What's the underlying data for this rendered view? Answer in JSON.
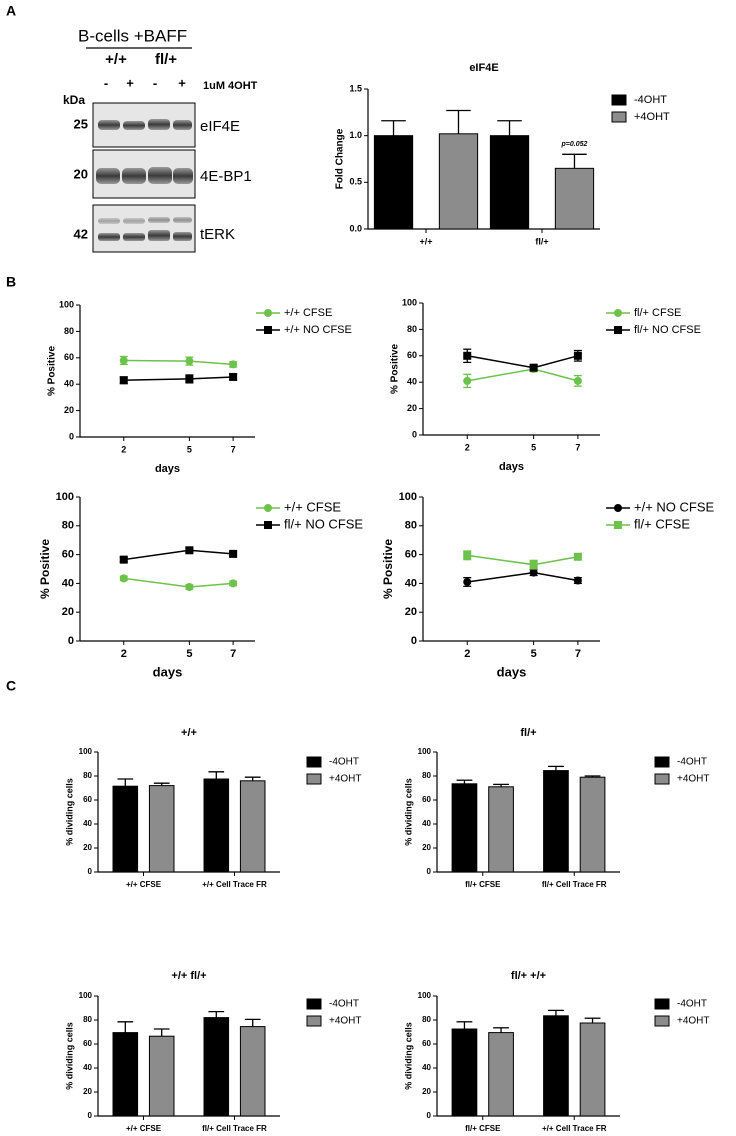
{
  "panel_labels": [
    "A",
    "B",
    "C"
  ],
  "blot": {
    "title": "B-cells +BAFF",
    "genotypes": [
      "+/+",
      "fl/+"
    ],
    "treatment_signs": [
      "-",
      "+",
      "-",
      "+"
    ],
    "treatment_label": "1uM 4OHT",
    "kda_label": "kDa",
    "markers": [
      "25",
      "20",
      "42"
    ],
    "proteins": [
      "eIF4E",
      "4E-BP1",
      "tERK"
    ]
  },
  "chart_data": [
    {
      "type": "bar",
      "title": "eIF4E",
      "y_label": "Fold Change",
      "categories": [
        "+/+",
        "fl/+"
      ],
      "series": [
        {
          "name": "-4OHT",
          "color": "#000000",
          "values": [
            1.0,
            1.0
          ],
          "errors": [
            0.16,
            0.16
          ]
        },
        {
          "name": "+4OHT",
          "color": "#8c8c8c",
          "values": [
            1.02,
            0.65
          ],
          "errors": [
            0.25,
            0.15
          ]
        }
      ],
      "annotation": "p=0.052",
      "ylim": [
        0,
        1.5
      ],
      "yticks": [
        {
          "value": 0,
          "label": "0.0"
        },
        {
          "value": 0.5,
          "label": "0.5"
        },
        {
          "value": 1,
          "label": "1.0"
        },
        {
          "value": 1.5,
          "label": "1.5"
        }
      ]
    },
    {
      "type": "line",
      "x_label": "days",
      "y_label": "% Positive",
      "x": [
        2,
        5,
        7
      ],
      "xlim": [
        0,
        8
      ],
      "xticks": [
        2,
        5,
        7
      ],
      "ylim": [
        0,
        100
      ],
      "yticks": [
        0,
        20,
        40,
        60,
        80,
        100
      ],
      "series": [
        {
          "name": "+/+ CFSE",
          "color": "#6cc24a",
          "marker": "circle",
          "values": [
            58,
            57.5,
            55
          ],
          "errors": [
            3,
            3,
            2
          ]
        },
        {
          "name": "+/+ NO CFSE",
          "color": "#000000",
          "marker": "square",
          "values": [
            43,
            44,
            45.5
          ],
          "errors": [
            2.5,
            3,
            2
          ]
        }
      ]
    },
    {
      "type": "line",
      "x_label": "days",
      "y_label": "% Positive",
      "x": [
        2,
        5,
        7
      ],
      "xlim": [
        0,
        8
      ],
      "xticks": [
        2,
        5,
        7
      ],
      "ylim": [
        0,
        100
      ],
      "yticks": [
        0,
        20,
        40,
        60,
        80,
        100
      ],
      "series": [
        {
          "name": "fl/+ CFSE",
          "color": "#6cc24a",
          "marker": "circle",
          "values": [
            41,
            50,
            41
          ],
          "errors": [
            5,
            2,
            4
          ]
        },
        {
          "name": "fl/+ NO CFSE",
          "color": "#000000",
          "marker": "square",
          "values": [
            60,
            51,
            60
          ],
          "errors": [
            5,
            2,
            4
          ]
        }
      ]
    },
    {
      "type": "line",
      "x_label": "days",
      "y_label": "% Positive",
      "x": [
        2,
        5,
        7
      ],
      "xlim": [
        0,
        8
      ],
      "xticks": [
        2,
        5,
        7
      ],
      "ylim": [
        0,
        100
      ],
      "yticks": [
        0,
        20,
        40,
        60,
        80,
        100
      ],
      "series": [
        {
          "name": "+/+ CFSE",
          "color": "#6cc24a",
          "marker": "circle",
          "values": [
            43.5,
            37.5,
            40
          ],
          "errors": [
            1.5,
            1.5,
            1.5
          ]
        },
        {
          "name": "fl/+ NO CFSE",
          "color": "#000000",
          "marker": "square",
          "values": [
            56.5,
            63,
            60.5
          ],
          "errors": [
            1.5,
            1.5,
            1.5
          ]
        }
      ]
    },
    {
      "type": "line",
      "x_label": "days",
      "y_label": "% Positive",
      "x": [
        2,
        5,
        7
      ],
      "xlim": [
        0,
        8
      ],
      "xticks": [
        2,
        5,
        7
      ],
      "ylim": [
        0,
        100
      ],
      "yticks": [
        0,
        20,
        40,
        60,
        80,
        100
      ],
      "series": [
        {
          "name": "+/+  NO CFSE",
          "color": "#000000",
          "marker": "circle",
          "values": [
            41,
            47.5,
            42
          ],
          "errors": [
            3,
            2,
            2
          ]
        },
        {
          "name": "fl/+ CFSE",
          "color": "#6cc24a",
          "marker": "square",
          "values": [
            59.5,
            53,
            58.5
          ],
          "errors": [
            3,
            3,
            2
          ]
        }
      ]
    },
    {
      "type": "bar",
      "title": "+/+",
      "y_label": "% dividing cells",
      "categories": [
        "+/+ CFSE",
        "+/+ Cell Trace FR"
      ],
      "series": [
        {
          "name": "-4OHT",
          "color": "#000000",
          "values": [
            71.5,
            77.5
          ],
          "errors": [
            6,
            6
          ]
        },
        {
          "name": "+4OHT",
          "color": "#8c8c8c",
          "values": [
            72,
            76
          ],
          "errors": [
            2,
            3
          ]
        }
      ],
      "ylim": [
        0,
        100
      ],
      "yticks": [
        0,
        20,
        40,
        60,
        80,
        100
      ]
    },
    {
      "type": "bar",
      "title": "fl/+",
      "y_label": "% dividing cells",
      "categories": [
        "fl/+ CFSE",
        "fl/+ Cell Trace FR"
      ],
      "series": [
        {
          "name": "-4OHT",
          "color": "#000000",
          "values": [
            73.5,
            84.5
          ],
          "errors": [
            3,
            3.5
          ]
        },
        {
          "name": "+4OHT",
          "color": "#8c8c8c",
          "values": [
            71,
            79
          ],
          "errors": [
            2,
            1
          ]
        }
      ],
      "ylim": [
        0,
        100
      ],
      "yticks": [
        0,
        20,
        40,
        60,
        80,
        100
      ]
    },
    {
      "type": "bar",
      "title": "+/+ fl/+",
      "y_label": "% dividing cells",
      "categories": [
        "+/+ CFSE",
        "fl/+ Cell Trace FR"
      ],
      "series": [
        {
          "name": "-4OHT",
          "color": "#000000",
          "values": [
            69.5,
            82
          ],
          "errors": [
            9,
            5
          ]
        },
        {
          "name": "+4OHT",
          "color": "#8c8c8c",
          "values": [
            66.5,
            74.5
          ],
          "errors": [
            6,
            6
          ]
        }
      ],
      "ylim": [
        0,
        100
      ],
      "yticks": [
        0,
        20,
        40,
        60,
        80,
        100
      ]
    },
    {
      "type": "bar",
      "title": "fl/+ +/+",
      "y_label": "% dividing cells",
      "categories": [
        "fl/+ CFSE",
        "+/+ Cell Trace FR"
      ],
      "series": [
        {
          "name": "-4OHT",
          "color": "#000000",
          "values": [
            72.5,
            83.5
          ],
          "errors": [
            6,
            4.5
          ]
        },
        {
          "name": "+4OHT",
          "color": "#8c8c8c",
          "values": [
            69.5,
            77.5
          ],
          "errors": [
            4,
            4
          ]
        }
      ],
      "ylim": [
        0,
        100
      ],
      "yticks": [
        0,
        20,
        40,
        60,
        80,
        100
      ]
    }
  ]
}
